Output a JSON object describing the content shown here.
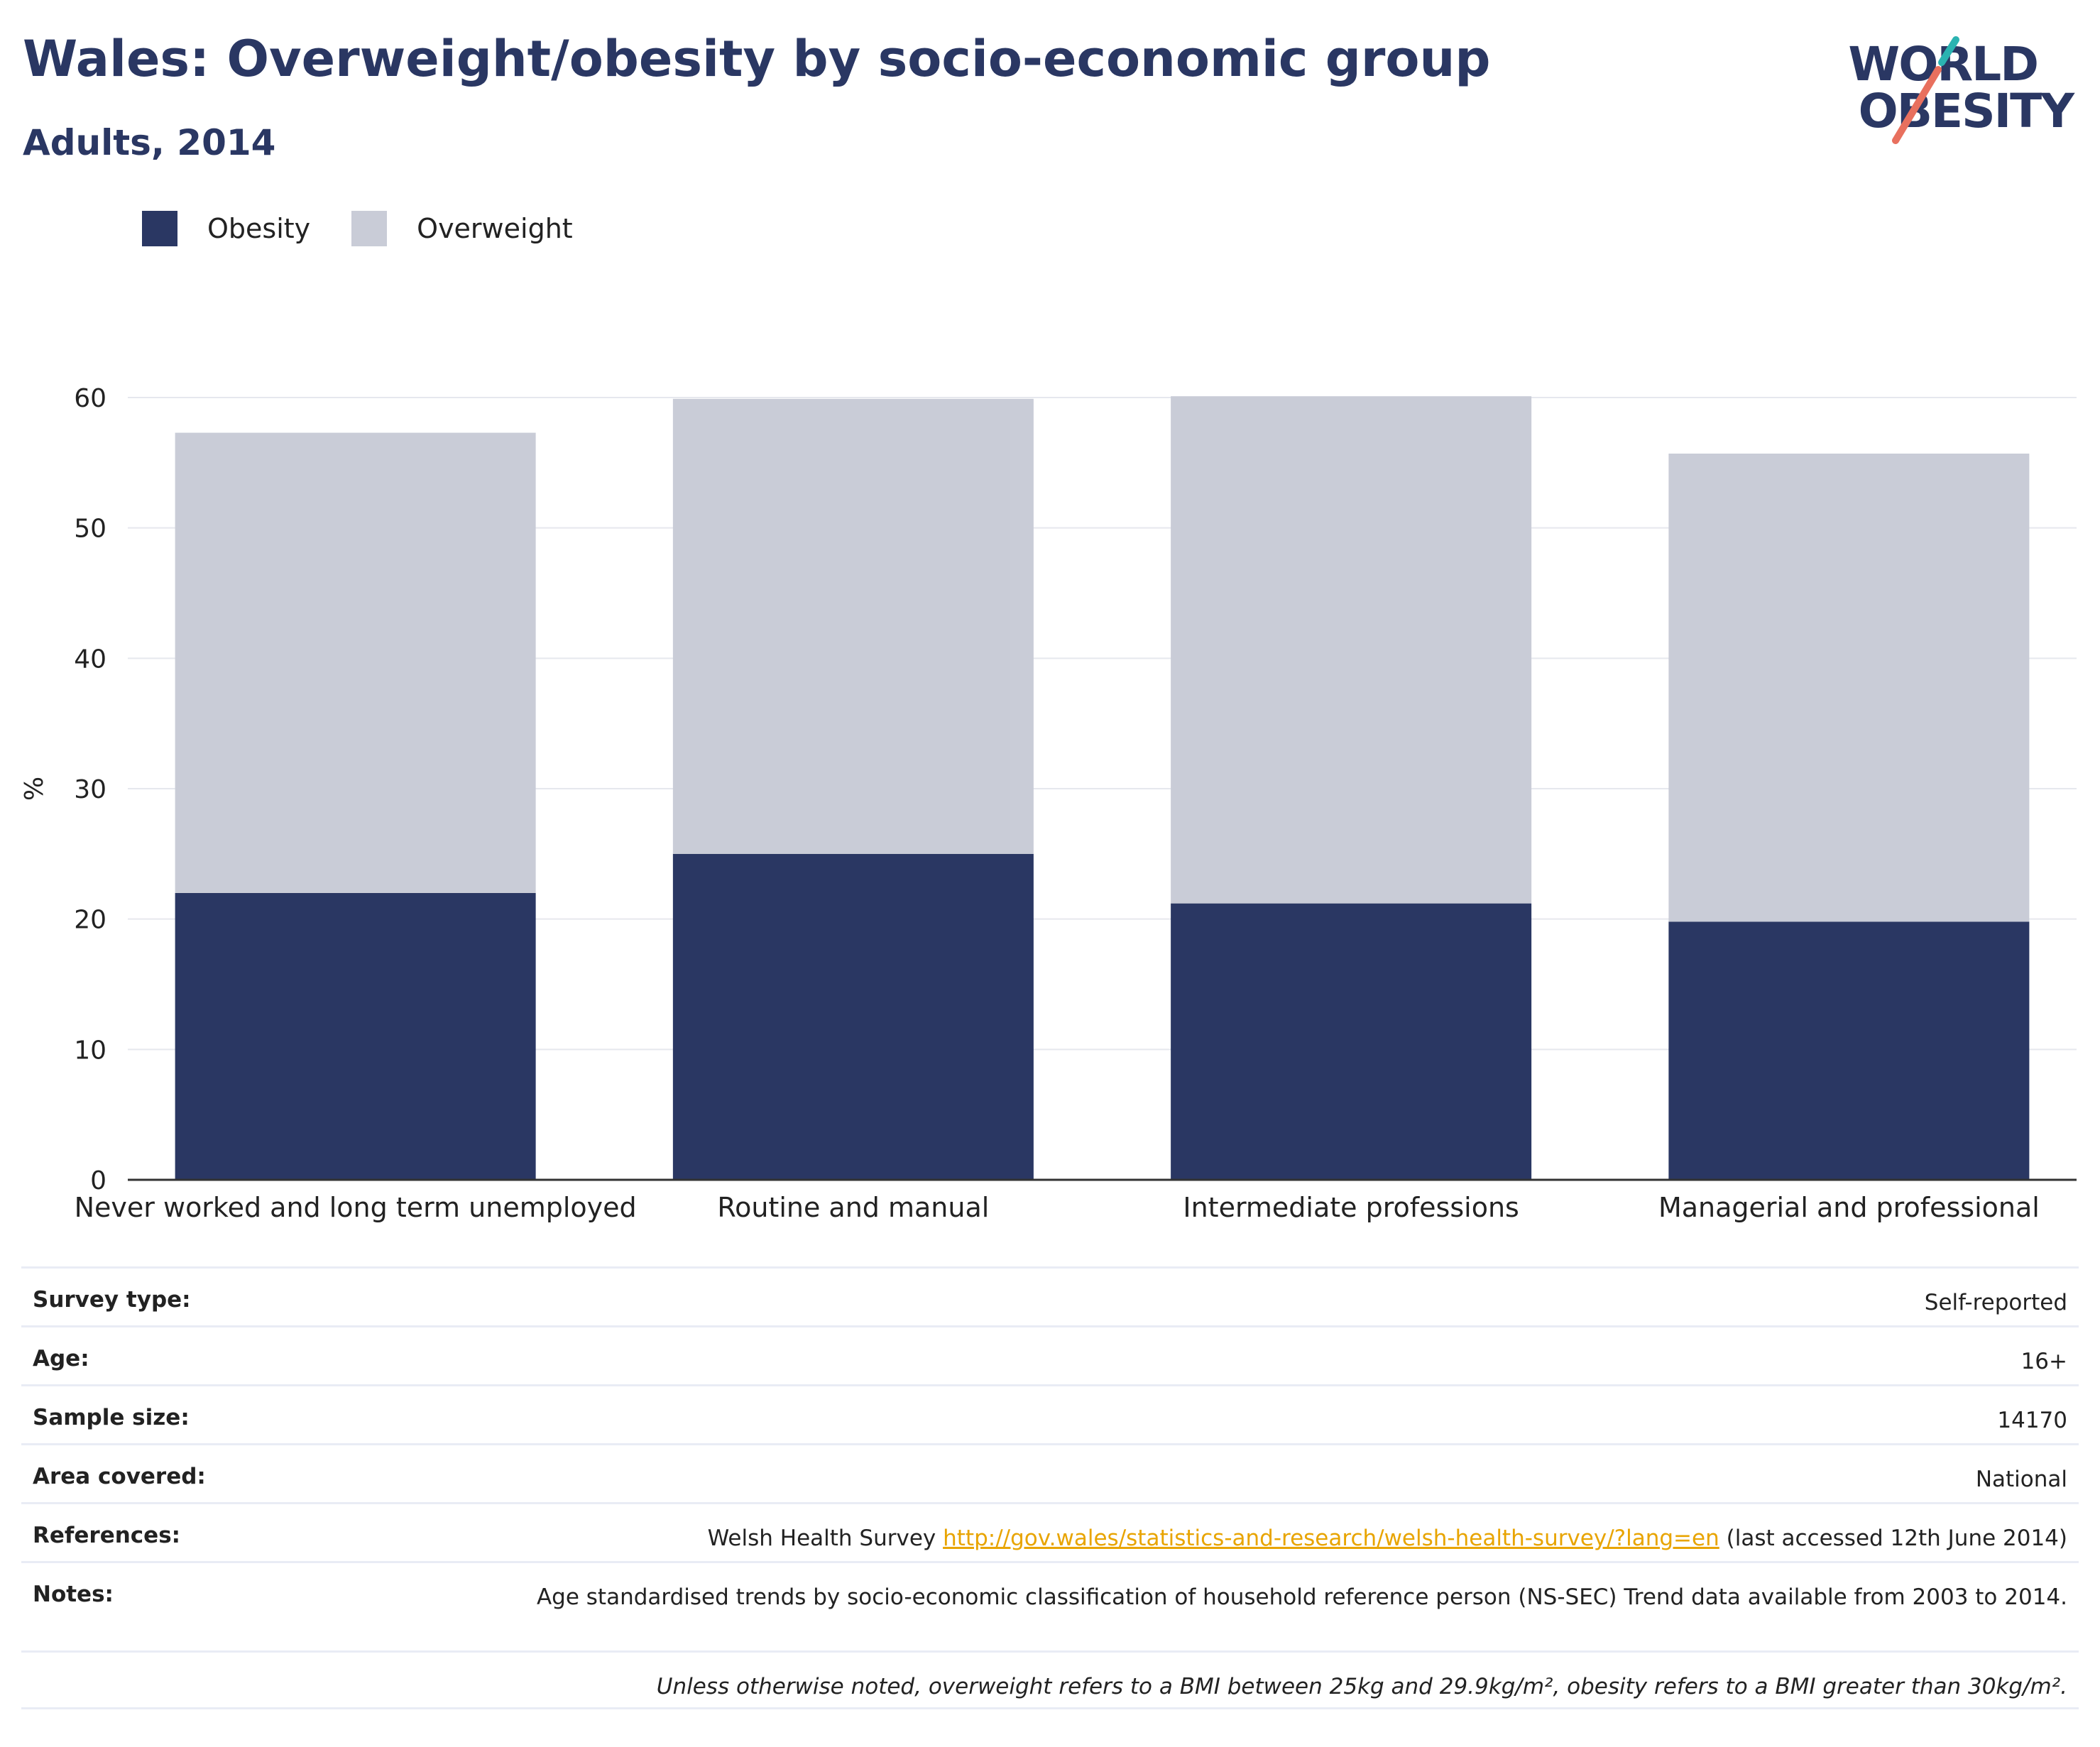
{
  "header": {
    "title": "Wales: Overweight/obesity by socio-economic group",
    "subtitle": "Adults, 2014"
  },
  "logo": {
    "line1": "WORLD",
    "line2": "OBESITY"
  },
  "colors": {
    "obesity": "#2a3763",
    "overweight": "#c9ccd7",
    "logo_teal": "#2bb3b1",
    "logo_coral": "#e8705e",
    "link": "#e8a400"
  },
  "legend": [
    {
      "label": "Obesity",
      "color": "#2a3763"
    },
    {
      "label": "Overweight",
      "color": "#c9ccd7"
    }
  ],
  "chart_data": {
    "type": "bar",
    "stacked": true,
    "categories": [
      "Never worked and long term unemployed",
      "Routine and manual",
      "Intermediate professions",
      "Managerial and professional"
    ],
    "series": [
      {
        "name": "Obesity",
        "values": [
          22,
          25,
          21.2,
          19.8
        ]
      },
      {
        "name": "Overweight",
        "values": [
          35.3,
          34.9,
          38.9,
          35.9
        ]
      }
    ],
    "ylabel": "%",
    "ylim": [
      0,
      60
    ],
    "yticks": [
      0,
      10,
      20,
      30,
      40,
      50,
      60
    ],
    "grid": true,
    "legend_position": "top-left"
  },
  "meta": {
    "rows": [
      {
        "key": "Survey type:",
        "value": "Self-reported"
      },
      {
        "key": "Age:",
        "value": "16+"
      },
      {
        "key": "Sample size:",
        "value": "14170"
      },
      {
        "key": "Area covered:",
        "value": "National"
      }
    ],
    "references": {
      "key": "References:",
      "prefix": "Welsh Health Survey ",
      "link": "http://gov.wales/statistics-and-research/welsh-health-survey/?lang=en",
      "suffix": " (last accessed 12th June 2014)"
    },
    "notes": {
      "key": "Notes:",
      "value": "Age standardised trends by socio-economic classification of household reference person (NS-SEC) Trend data available from 2003 to 2014."
    },
    "footnote": "Unless otherwise noted, overweight refers to a BMI between 25kg and 29.9kg/m², obesity refers to a BMI greater than 30kg/m²."
  }
}
